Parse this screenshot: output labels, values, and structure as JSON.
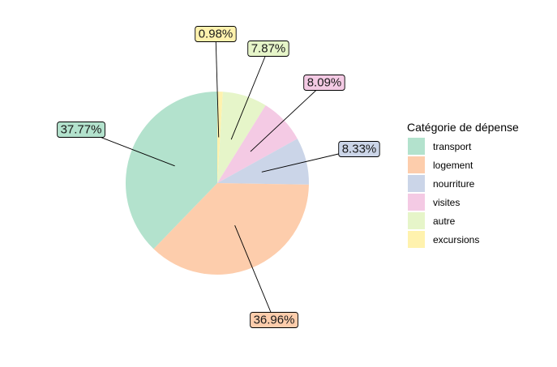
{
  "chart_data": {
    "type": "pie",
    "legend": {
      "title": "Catégorie de dépense",
      "position": "right"
    },
    "categories": [
      "transport",
      "logement",
      "nourriture",
      "visites",
      "autre",
      "excursions"
    ],
    "values": [
      37.77,
      36.96,
      8.33,
      8.09,
      7.87,
      0.98
    ],
    "labels": [
      "37.77%",
      "36.96%",
      "8.33%",
      "8.09%",
      "7.87%",
      "0.98%"
    ],
    "colors": [
      "#b3e2cd",
      "#fdcdac",
      "#cbd5e8",
      "#f4cae4",
      "#e6f5c9",
      "#fff2ae"
    ],
    "slice_order_clockwise_from_top": [
      "excursions",
      "autre",
      "visites",
      "nourriture",
      "logement",
      "transport"
    ]
  }
}
